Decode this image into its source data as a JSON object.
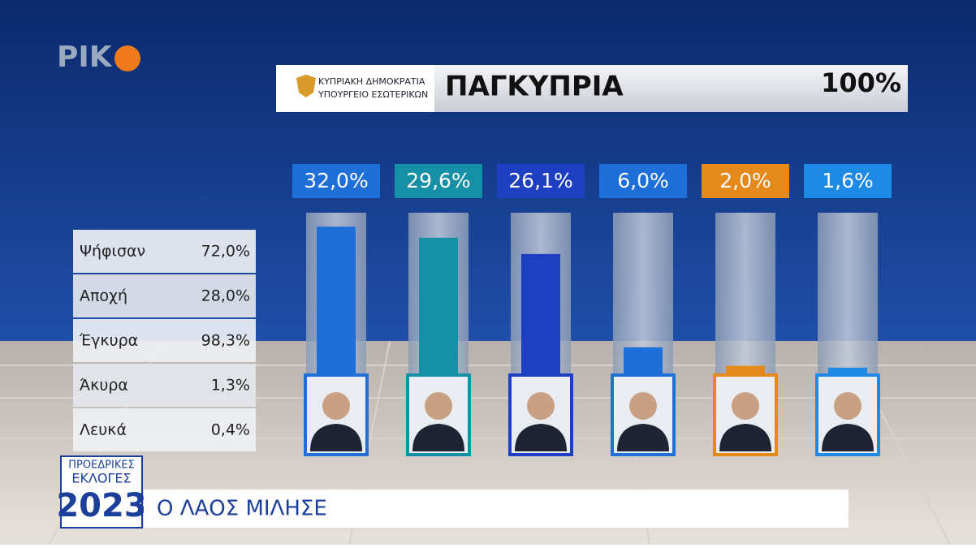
{
  "chart_data": {
    "type": "bar",
    "categories": [
      null,
      null,
      null,
      null,
      null,
      null
    ],
    "values": [
      32.0,
      29.6,
      26.1,
      6.0,
      2.0,
      1.6
    ],
    "value_labels": [
      "32,0%",
      "29,6%",
      "26,1%",
      "6,0%",
      "2,0%",
      "1,6%"
    ],
    "colors": [
      "#1f6fd8",
      "#1690a6",
      "#1d3fc2",
      "#1f6fd8",
      "#e5891b",
      "#1f8ae6"
    ],
    "ylim": [
      0,
      35
    ]
  },
  "logo": "ΡΙΚ",
  "header": {
    "ministry": [
      "ΚΥΠΡΙΑΚΗ ΔΗΜΟΚΡΑΤΙΑ",
      "ΥΠΟΥΡΓΕΙΟ ΕΣΩΤΕΡΙΚΩΝ"
    ],
    "title": "ΠΑΓΚΥΠΡΙΑ",
    "counted": "100%"
  },
  "table": {
    "rows": [
      [
        "Ψήφισαν",
        "72,0%"
      ],
      [
        "Αποχή",
        "28,0%"
      ],
      [
        "Έγκυρα",
        "98,3%"
      ],
      [
        "Άκυρα",
        "1,3%"
      ],
      [
        "Λευκά",
        "0,4%"
      ]
    ]
  },
  "footer": {
    "badge": [
      "ΠΡΟΕΔΡΙΚΕΣ",
      "ΕΚΛΟΓΕΣ",
      "2023"
    ],
    "headline": "Ο ΛΑΟΣ ΜΙΛΗΣΕ"
  }
}
